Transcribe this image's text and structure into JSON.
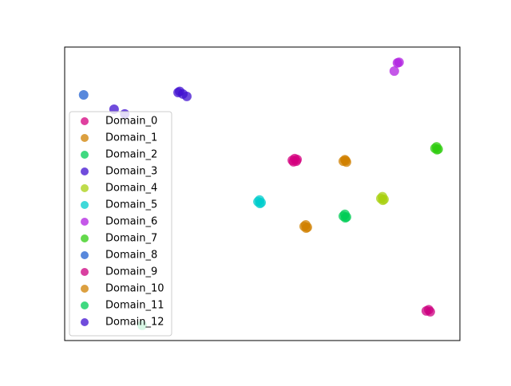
{
  "chart_data": {
    "type": "scatter",
    "xlim": [
      0,
      100
    ],
    "ylim": [
      0,
      100
    ],
    "legend": "lower left",
    "series": [
      {
        "name": "Domain_0",
        "color": "#d4007f",
        "x": [
          57.6,
          58.6,
          58.2,
          58.8,
          57.9
        ],
        "y": [
          61.4,
          61.1,
          62.0,
          61.7,
          60.9
        ]
      },
      {
        "name": "Domain_1",
        "color": "#d08000",
        "x": [
          70.5,
          71.3,
          70.9,
          71.1
        ],
        "y": [
          61.1,
          60.8,
          61.6,
          61.3
        ]
      },
      {
        "name": "Domain_2",
        "color": "#00cc55",
        "x": [
          70.5,
          71.3,
          70.9,
          71.0
        ],
        "y": [
          42.4,
          42.1,
          43.0,
          41.8
        ]
      },
      {
        "name": "Domain_3",
        "color": "#4010d0",
        "x": [
          28.7,
          29.1,
          29.9,
          30.9
        ],
        "y": [
          84.5,
          84.9,
          84.0,
          83.2
        ]
      },
      {
        "name": "Domain_4",
        "color": "#a8d010",
        "x": [
          80.0,
          80.8,
          80.4,
          80.5
        ],
        "y": [
          48.4,
          48.1,
          49.0,
          47.8
        ]
      },
      {
        "name": "Domain_5",
        "color": "#00cccc",
        "x": [
          48.9,
          49.7,
          49.3,
          49.4
        ],
        "y": [
          47.3,
          47.0,
          47.9,
          46.7
        ]
      },
      {
        "name": "Domain_6",
        "color": "#b020e0",
        "x": [
          84.2,
          84.6,
          83.4
        ],
        "y": [
          94.6,
          94.8,
          91.8
        ]
      },
      {
        "name": "Domain_7",
        "color": "#30cc10",
        "x": [
          93.7,
          94.5,
          94.1,
          94.2
        ],
        "y": [
          65.5,
          65.2,
          66.0,
          65.0
        ]
      },
      {
        "name": "Domain_8",
        "color": "#2060d0",
        "x": [
          4.8
        ],
        "y": [
          83.7
        ]
      },
      {
        "name": "Domain_9",
        "color": "#cc0080",
        "x": [
          91.5,
          92.5,
          92.1
        ],
        "y": [
          10.1,
          9.8,
          10.5
        ]
      },
      {
        "name": "Domain_10",
        "color": "#d08000",
        "x": [
          60.6,
          61.4,
          61.0,
          61.1
        ],
        "y": [
          38.9,
          38.6,
          39.4,
          38.3
        ]
      },
      {
        "name": "Domain_11",
        "color": "#00cc55",
        "x": [
          19.6
        ],
        "y": [
          5.2
        ]
      },
      {
        "name": "Domain_12",
        "color": "#4010d0",
        "x": [
          12.5,
          15.2
        ],
        "y": [
          78.8,
          77.2
        ]
      }
    ]
  }
}
